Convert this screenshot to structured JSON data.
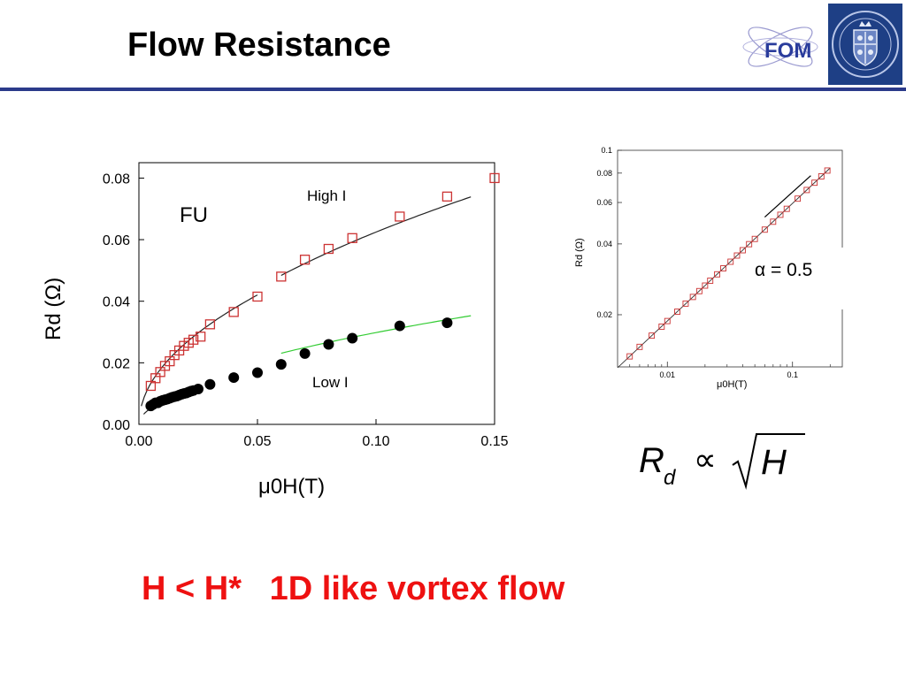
{
  "slide": {
    "title": "Flow Resistance",
    "conclusion": "H < H*   1D like vortex flow",
    "logo_text": "FOM",
    "crest_text": "SIGILLVM ACADEMIAE LVGDVNO BATAVAE",
    "formula": {
      "lhs": "R",
      "sub": "d",
      "op": "∝",
      "rhs": "H"
    }
  },
  "colors": {
    "rule": "#2b3a8a",
    "conclusion": "#ee1111",
    "high_marker": "#cc3333",
    "low_fit": "#33cc33"
  },
  "chart_data": [
    {
      "type": "scatter",
      "panel_label": "FU",
      "xlabel": "μ0H(T)",
      "ylabel": "Rd (Ω)",
      "xlim": [
        0,
        0.15
      ],
      "ylim": [
        0,
        0.085
      ],
      "x_ticks": [
        "0.00",
        "0.05",
        "0.10",
        "0.15"
      ],
      "y_ticks": [
        "0.00",
        "0.02",
        "0.04",
        "0.06",
        "0.08"
      ],
      "series": [
        {
          "name": "High I",
          "marker": "open-square",
          "x": [
            0.005,
            0.007,
            0.009,
            0.011,
            0.013,
            0.015,
            0.017,
            0.019,
            0.021,
            0.023,
            0.026,
            0.03,
            0.04,
            0.05,
            0.06,
            0.07,
            0.08,
            0.09,
            0.11,
            0.13,
            0.15
          ],
          "y": [
            0.0125,
            0.015,
            0.017,
            0.019,
            0.0205,
            0.0225,
            0.024,
            0.0255,
            0.0265,
            0.0275,
            0.0285,
            0.0325,
            0.0365,
            0.0415,
            0.048,
            0.0535,
            0.057,
            0.0605,
            0.0675,
            0.074,
            0.08
          ]
        },
        {
          "name": "Low I",
          "marker": "filled-circle",
          "x": [
            0.005,
            0.006,
            0.007,
            0.008,
            0.009,
            0.01,
            0.011,
            0.012,
            0.013,
            0.014,
            0.015,
            0.016,
            0.017,
            0.018,
            0.019,
            0.02,
            0.021,
            0.022,
            0.023,
            0.025,
            0.03,
            0.04,
            0.05,
            0.06,
            0.07,
            0.08,
            0.09,
            0.11,
            0.13
          ],
          "y": [
            0.006,
            0.0065,
            0.007,
            0.007,
            0.0075,
            0.0078,
            0.008,
            0.0082,
            0.0085,
            0.0088,
            0.009,
            0.0092,
            0.0095,
            0.0098,
            0.01,
            0.0102,
            0.0105,
            0.0108,
            0.011,
            0.0115,
            0.013,
            0.0152,
            0.0168,
            0.0195,
            0.023,
            0.026,
            0.028,
            0.032,
            0.033
          ]
        }
      ],
      "fits": [
        {
          "series": "High I",
          "segments": [
            [
              0.001,
              0.05
            ],
            [
              0.06,
              0.14
            ]
          ],
          "coef": [
            0.188,
            0.1975
          ]
        },
        {
          "series": "Low I",
          "segments": [
            [
              0.002,
              0.023
            ],
            [
              0.06,
              0.14
            ]
          ],
          "coef": [
            0.074,
            0.0943
          ]
        }
      ]
    },
    {
      "type": "scatter",
      "scale": "log-log",
      "xlabel": "μ0H(T)",
      "ylabel": "Rd (Ω)",
      "xlim": [
        0.004,
        0.25
      ],
      "ylim": [
        0.012,
        0.1
      ],
      "x_ticks": [
        "0.01",
        "0.1"
      ],
      "y_ticks": [
        "0.02",
        "0.04",
        "0.06",
        "0.08",
        "0.1"
      ],
      "annotation": "α = 0.5",
      "series": [
        {
          "name": "",
          "marker": "open-square",
          "x": [
            0.005,
            0.006,
            0.0075,
            0.009,
            0.01,
            0.012,
            0.014,
            0.016,
            0.018,
            0.02,
            0.022,
            0.025,
            0.028,
            0.032,
            0.036,
            0.04,
            0.045,
            0.05,
            0.06,
            0.07,
            0.08,
            0.09,
            0.11,
            0.13,
            0.15,
            0.17,
            0.19
          ],
          "y": [
            0.0133,
            0.0146,
            0.0163,
            0.0178,
            0.0188,
            0.0206,
            0.0223,
            0.0238,
            0.0252,
            0.0266,
            0.0279,
            0.0297,
            0.0315,
            0.0336,
            0.0357,
            0.0376,
            0.0399,
            0.042,
            0.046,
            0.0497,
            0.0532,
            0.0564,
            0.0623,
            0.0678,
            0.0728,
            0.0775,
            0.082
          ]
        }
      ],
      "fit": {
        "x": [
          0.004,
          0.2
        ],
        "y": [
          0.0119,
          0.0841
        ]
      },
      "alt_line": {
        "x": [
          0.06,
          0.14
        ],
        "y": [
          0.052,
          0.078
        ]
      }
    }
  ]
}
